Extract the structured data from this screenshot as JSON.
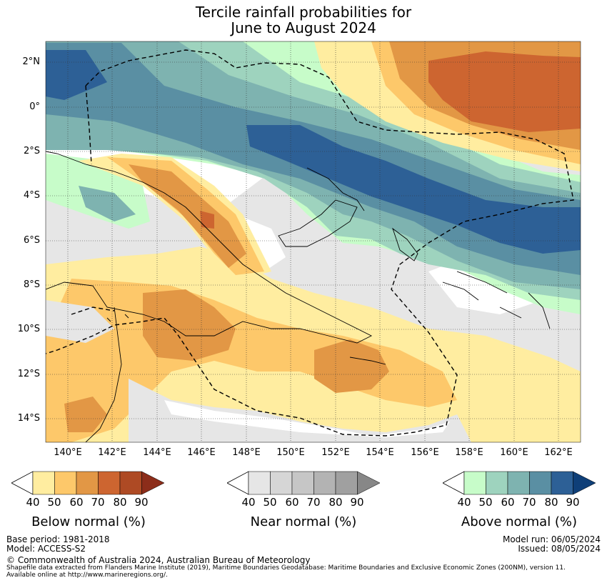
{
  "title": {
    "line1": "Tercile rainfall probabilities for",
    "line2": "June to August 2024"
  },
  "axes": {
    "lat_labels": [
      "2°N",
      "0°",
      "2°S",
      "4°S",
      "6°S",
      "8°S",
      "10°S",
      "12°S",
      "14°S"
    ],
    "lon_labels": [
      "140°E",
      "142°E",
      "144°E",
      "146°E",
      "148°E",
      "150°E",
      "152°E",
      "154°E",
      "156°E",
      "158°E",
      "160°E",
      "162°E"
    ]
  },
  "colorbars": [
    {
      "label": "Below normal (%)",
      "ticks": [
        "40",
        "50",
        "60",
        "70",
        "80",
        "90"
      ],
      "colors": [
        "#ffeda0",
        "#fdc86a",
        "#e29745",
        "#cd6530",
        "#ae4a24",
        "#8c2d1a"
      ]
    },
    {
      "label": "Near normal (%)",
      "ticks": [
        "40",
        "50",
        "60",
        "70",
        "80",
        "90"
      ],
      "colors": [
        "#e6e6e6",
        "#d6d6d6",
        "#c6c6c6",
        "#b3b3b3",
        "#a0a0a0",
        "#878787"
      ]
    },
    {
      "label": "Above normal (%)",
      "ticks": [
        "40",
        "50",
        "60",
        "70",
        "80",
        "90"
      ],
      "colors": [
        "#c7fcc9",
        "#9ed3be",
        "#7eb3b0",
        "#5a8fa3",
        "#2d6096",
        "#0f3f78"
      ]
    }
  ],
  "footer": {
    "base_period": "Base period: 1981-2018",
    "model": "Model: ACCESS-S2",
    "model_run": "Model run: 06/05/2024",
    "issued": "Issued: 08/05/2024",
    "copyright": "© Commonwealth of Australia 2024, Australian Bureau of Meteorology",
    "shapefile1": "Shapefile data extracted from Flanders Marine Institute (2019), Maritime Boundaries Geodatabase: Maritime Boundaries and Exclusive Economic Zones (200NM), version 11.",
    "shapefile2": "Available online at http://www.marineregions.org/."
  }
}
